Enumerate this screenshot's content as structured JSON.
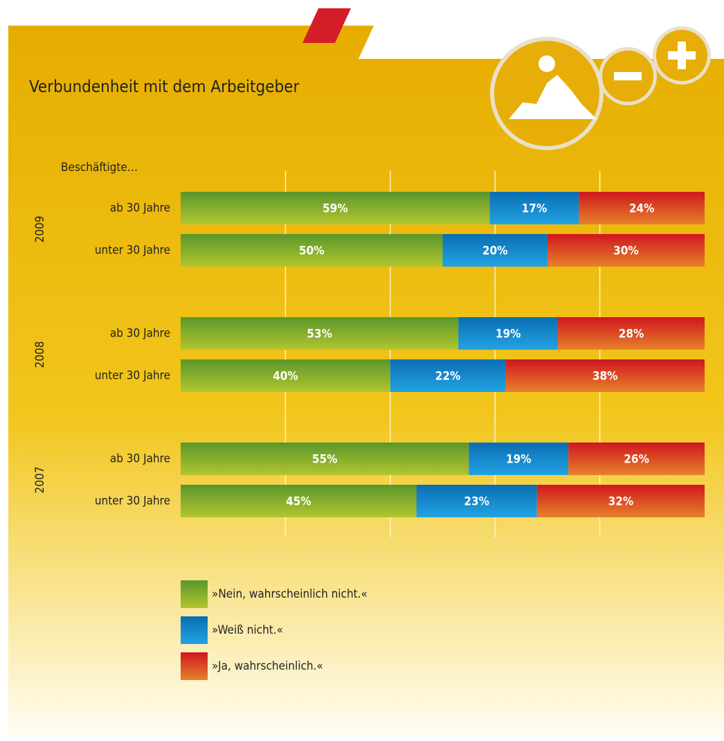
{
  "chart_data": {
    "type": "stacked-bar-horizontal",
    "title": "Verbundenheit mit dem Arbeitgeber",
    "category_axis_label": "Beschäftigte…",
    "groups": [
      "2009",
      "2008",
      "2007"
    ],
    "categories": [
      "ab 30 Jahre",
      "unter 30 Jahre",
      "ab 30 Jahre",
      "unter 30 Jahre",
      "ab 30 Jahre",
      "unter 30 Jahre"
    ],
    "series": [
      {
        "name": "»Nein, wahrscheinlich nicht.«",
        "color": "#5a962c",
        "color_bottom": "#b2c62e",
        "values": [
          59,
          50,
          53,
          40,
          55,
          45
        ],
        "value_labels": [
          "59%",
          "50%",
          "53%",
          "40%",
          "55%",
          "45%"
        ]
      },
      {
        "name": "»Weiß nicht.«",
        "color": "#0b6db4",
        "color_bottom": "#22a3e2",
        "values": [
          17,
          20,
          19,
          22,
          19,
          23
        ],
        "value_labels": [
          "17%",
          "20%",
          "19%",
          "22%",
          "19%",
          "23%"
        ]
      },
      {
        "name": "»Ja, wahrscheinlich.«",
        "color": "#d0161f",
        "color_bottom": "#e6822a",
        "values": [
          24,
          30,
          28,
          38,
          26,
          32
        ],
        "value_labels": [
          "24%",
          "30%",
          "28%",
          "38%",
          "26%",
          "32%"
        ]
      }
    ],
    "xlim": [
      0,
      100
    ],
    "xticks": [
      20,
      40,
      60,
      80
    ],
    "grid": true
  }
}
